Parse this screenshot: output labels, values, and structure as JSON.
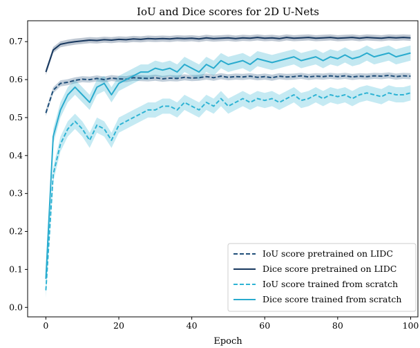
{
  "chart_data": {
    "type": "line",
    "title": "IoU and Dice scores for 2D U-Nets",
    "xlabel": "Epoch",
    "ylabel": "",
    "xlim": [
      -5,
      102
    ],
    "ylim": [
      -0.025,
      0.755
    ],
    "xticks": [
      0,
      20,
      40,
      60,
      80,
      100
    ],
    "xtick_labels": [
      "0",
      "20",
      "40",
      "60",
      "80",
      "100"
    ],
    "yticks": [
      0.0,
      0.1,
      0.2,
      0.3,
      0.4,
      0.5,
      0.6,
      0.7
    ],
    "ytick_labels": [
      "0.0",
      "0.1",
      "0.2",
      "0.3",
      "0.4",
      "0.5",
      "0.6",
      "0.7"
    ],
    "grid": false,
    "legend_position": "bottom-right",
    "x_step": 2,
    "series": [
      {
        "name": "IoU score pretrained on LIDC",
        "color": "#1f4e79",
        "dash": true,
        "band": 0.008,
        "values": [
          0.512,
          0.572,
          0.59,
          0.593,
          0.598,
          0.601,
          0.6,
          0.603,
          0.6,
          0.604,
          0.602,
          0.601,
          0.605,
          0.604,
          0.603,
          0.605,
          0.602,
          0.604,
          0.603,
          0.606,
          0.604,
          0.605,
          0.608,
          0.605,
          0.609,
          0.606,
          0.608,
          0.607,
          0.609,
          0.606,
          0.608,
          0.605,
          0.609,
          0.607,
          0.608,
          0.61,
          0.607,
          0.609,
          0.608,
          0.61,
          0.608,
          0.61,
          0.607,
          0.609,
          0.608,
          0.61,
          0.609,
          0.611,
          0.608,
          0.61,
          0.609
        ]
      },
      {
        "name": "Dice score pretrained on LIDC",
        "color": "#17375e",
        "dash": false,
        "band": 0.008,
        "values": [
          0.62,
          0.678,
          0.693,
          0.697,
          0.7,
          0.702,
          0.704,
          0.703,
          0.705,
          0.704,
          0.706,
          0.705,
          0.707,
          0.706,
          0.708,
          0.707,
          0.708,
          0.707,
          0.709,
          0.708,
          0.709,
          0.707,
          0.71,
          0.708,
          0.709,
          0.71,
          0.708,
          0.71,
          0.709,
          0.711,
          0.709,
          0.71,
          0.708,
          0.711,
          0.709,
          0.71,
          0.711,
          0.709,
          0.71,
          0.711,
          0.709,
          0.71,
          0.711,
          0.709,
          0.711,
          0.71,
          0.709,
          0.711,
          0.71,
          0.711,
          0.71
        ]
      },
      {
        "name": "IoU score trained from scratch",
        "color": "#2eb3d4",
        "dash": true,
        "band": 0.02,
        "values": [
          0.045,
          0.35,
          0.43,
          0.47,
          0.49,
          0.47,
          0.44,
          0.48,
          0.47,
          0.44,
          0.48,
          0.49,
          0.5,
          0.51,
          0.52,
          0.52,
          0.53,
          0.53,
          0.52,
          0.54,
          0.53,
          0.52,
          0.54,
          0.53,
          0.55,
          0.53,
          0.54,
          0.55,
          0.54,
          0.55,
          0.545,
          0.55,
          0.54,
          0.55,
          0.56,
          0.545,
          0.55,
          0.56,
          0.55,
          0.56,
          0.555,
          0.56,
          0.55,
          0.56,
          0.565,
          0.56,
          0.555,
          0.565,
          0.56,
          0.56,
          0.565
        ]
      },
      {
        "name": "Dice score trained from scratch",
        "color": "#29abce",
        "dash": false,
        "band": 0.02,
        "values": [
          0.075,
          0.45,
          0.52,
          0.56,
          0.58,
          0.56,
          0.54,
          0.58,
          0.59,
          0.56,
          0.59,
          0.6,
          0.61,
          0.62,
          0.62,
          0.63,
          0.625,
          0.63,
          0.62,
          0.64,
          0.63,
          0.62,
          0.64,
          0.63,
          0.65,
          0.64,
          0.645,
          0.65,
          0.64,
          0.655,
          0.65,
          0.645,
          0.65,
          0.655,
          0.66,
          0.65,
          0.655,
          0.66,
          0.65,
          0.66,
          0.655,
          0.665,
          0.655,
          0.66,
          0.67,
          0.66,
          0.665,
          0.67,
          0.66,
          0.665,
          0.67
        ]
      }
    ]
  }
}
